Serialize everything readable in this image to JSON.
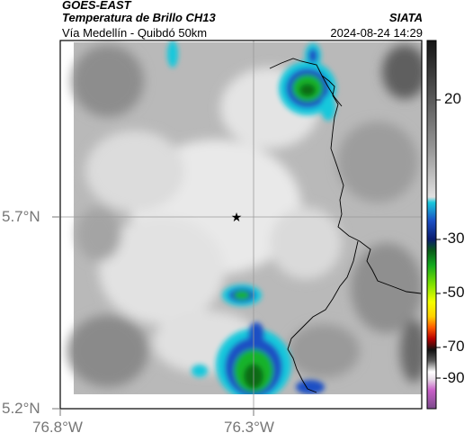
{
  "header": {
    "satellite": "GOES-EAST",
    "product": "Temperatura de Brillo CH13",
    "region": "Vía Medellín - Quibdó 50km",
    "agency": "SIATA",
    "timestamp": "2024-08-24 14:29"
  },
  "map": {
    "lat_labels": [
      "5.7°N",
      "5.2°N"
    ],
    "lon_labels": [
      "76.8°W",
      "76.3°W"
    ],
    "gridlines": true,
    "marker": "star",
    "colors": {
      "frame": "#000000",
      "gridline": "#9a9a9a",
      "border": "#000000",
      "cloud_light": "#e6e6e6",
      "cloud_mid": "#a9a9a9",
      "cloud_dark": "#5e5e5e",
      "cyan": "#19c8dc",
      "blue": "#1b4fc4",
      "navy": "#0a1c6e",
      "green": "#18b32a",
      "dark_green": "#0a6b16"
    }
  },
  "colorbar": {
    "tick_labels": [
      "20",
      "-30",
      "-50",
      "-70",
      "-90"
    ]
  }
}
